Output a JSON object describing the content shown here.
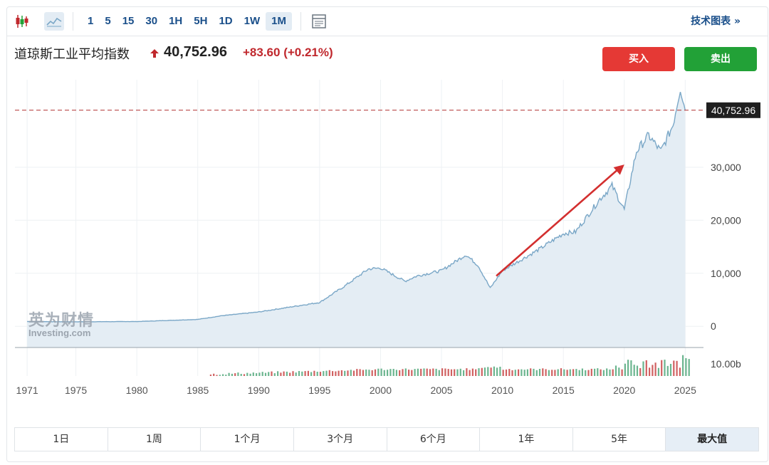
{
  "toolbar": {
    "intervals": [
      "1",
      "5",
      "15",
      "30",
      "1H",
      "5H",
      "1D",
      "1W",
      "1M"
    ],
    "active_interval": "1M",
    "tech_chart_label": "技术图表 »"
  },
  "header": {
    "title": "道琼斯工业平均指数",
    "price": "40,752.96",
    "change": "+83.60",
    "change_pct": "(+0.21%)",
    "buy_label": "买入",
    "sell_label": "卖出"
  },
  "watermark": {
    "line1": "英为财情",
    "line2": "Investing.com"
  },
  "ranges": [
    "1日",
    "1周",
    "1个月",
    "3个月",
    "6个月",
    "1年",
    "5年",
    "最大值"
  ],
  "active_range": "最大值",
  "colors": {
    "line": "#7aa7c7",
    "area": "#e4edf4",
    "price_line": "#b03030",
    "up": "#c0282d",
    "vol_up": "#6bb58f",
    "vol_down": "#d06060"
  },
  "chart_data": {
    "type": "area",
    "x": [
      1971,
      1975,
      1980,
      1985,
      1987,
      1990,
      1995,
      1997,
      1999,
      2000,
      2002,
      2003,
      2005,
      2007,
      2008,
      2009,
      2010,
      2013,
      2015,
      2016,
      2018,
      2019,
      2020,
      2021,
      2022,
      2023,
      2024,
      2024.6,
      2025
    ],
    "values": [
      900,
      850,
      900,
      1300,
      2000,
      2700,
      4500,
      7500,
      10800,
      11000,
      8500,
      9500,
      10500,
      13500,
      11500,
      7200,
      10500,
      14500,
      17500,
      17800,
      24000,
      26500,
      22000,
      33000,
      36000,
      33000,
      38000,
      45000,
      40752.96
    ],
    "current_value": 40752.96,
    "current_label": "40,752.96",
    "y_ticks": [
      0,
      10000,
      20000,
      30000
    ],
    "y_tick_labels": [
      "0",
      "10,000",
      "20,000",
      "30,000"
    ],
    "ylim": [
      -4000,
      46500
    ],
    "x_ticks": [
      1971,
      1975,
      1980,
      1985,
      1990,
      1995,
      2000,
      2005,
      2010,
      2015,
      2020,
      2025
    ],
    "x_tick_labels": [
      "1971",
      "1975",
      "1980",
      "1985",
      "1990",
      "1995",
      "2000",
      "2005",
      "2010",
      "2015",
      "2020",
      "2025"
    ],
    "xlim": [
      1970,
      2026.5
    ],
    "volume_label": "10.00b",
    "annotation": {
      "type": "arrow",
      "from": [
        2009.5,
        9500
      ],
      "to": [
        2020,
        30500
      ]
    },
    "grid": true
  }
}
